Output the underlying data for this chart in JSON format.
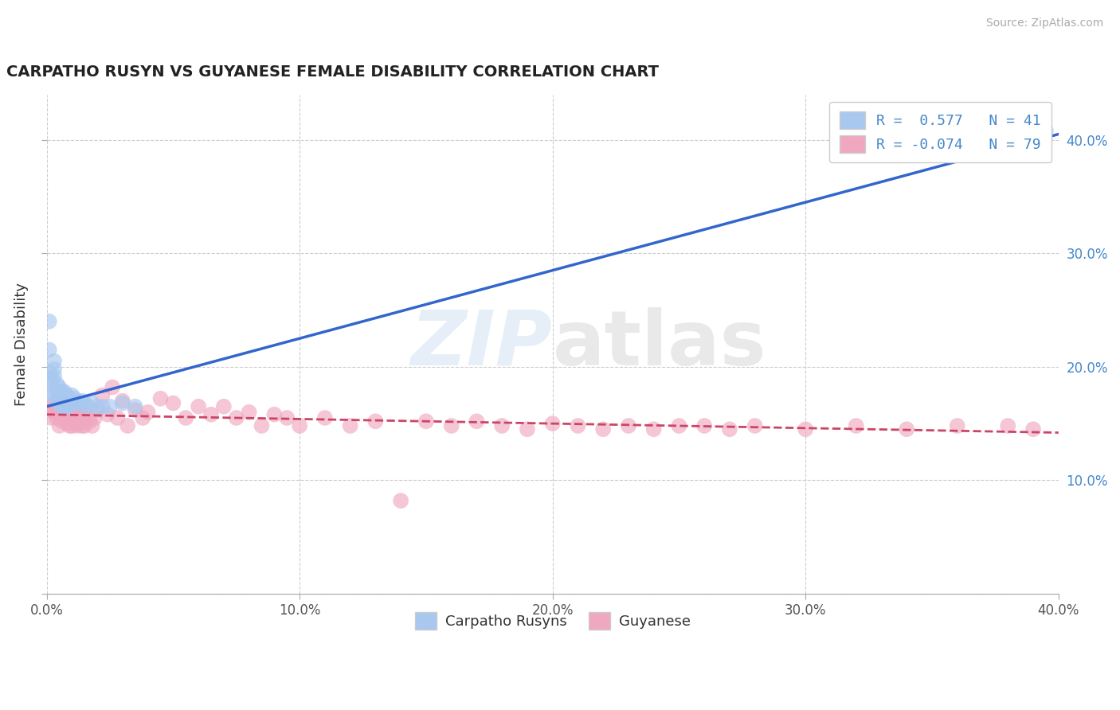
{
  "title": "CARPATHO RUSYN VS GUYANESE FEMALE DISABILITY CORRELATION CHART",
  "source": "Source: ZipAtlas.com",
  "ylabel": "Female Disability",
  "xlim": [
    0.0,
    0.4
  ],
  "ylim": [
    0.0,
    0.44
  ],
  "xtick_vals": [
    0.0,
    0.1,
    0.2,
    0.3,
    0.4
  ],
  "ytick_vals": [
    0.0,
    0.1,
    0.2,
    0.3,
    0.4
  ],
  "grid_color": "#c8c8c8",
  "background_color": "#ffffff",
  "blue_color": "#a8c8f0",
  "pink_color": "#f0a8c0",
  "blue_line_color": "#3366cc",
  "pink_line_color": "#cc4466",
  "legend_R1": "0.577",
  "legend_N1": "41",
  "legend_R2": "-0.074",
  "legend_N2": "79",
  "label1": "Carpatho Rusyns",
  "label2": "Guyanese",
  "blue_line_x0": 0.0,
  "blue_line_y0": 0.165,
  "blue_line_x1": 0.4,
  "blue_line_y1": 0.405,
  "pink_line_x0": 0.0,
  "pink_line_y0": 0.158,
  "pink_line_x1": 0.4,
  "pink_line_y1": 0.142,
  "blue_points_x": [
    0.001,
    0.001,
    0.002,
    0.002,
    0.002,
    0.003,
    0.003,
    0.003,
    0.003,
    0.004,
    0.004,
    0.004,
    0.005,
    0.005,
    0.005,
    0.006,
    0.006,
    0.006,
    0.007,
    0.007,
    0.007,
    0.008,
    0.008,
    0.009,
    0.009,
    0.01,
    0.01,
    0.011,
    0.012,
    0.013,
    0.014,
    0.015,
    0.016,
    0.018,
    0.02,
    0.022,
    0.025,
    0.03,
    0.035,
    0.001,
    0.395
  ],
  "blue_points_y": [
    0.215,
    0.195,
    0.19,
    0.185,
    0.178,
    0.205,
    0.198,
    0.192,
    0.175,
    0.185,
    0.178,
    0.17,
    0.182,
    0.175,
    0.168,
    0.178,
    0.172,
    0.165,
    0.178,
    0.172,
    0.165,
    0.175,
    0.168,
    0.172,
    0.165,
    0.175,
    0.168,
    0.172,
    0.168,
    0.168,
    0.17,
    0.168,
    0.165,
    0.168,
    0.165,
    0.165,
    0.165,
    0.168,
    0.165,
    0.24,
    0.408
  ],
  "pink_points_x": [
    0.001,
    0.002,
    0.002,
    0.003,
    0.003,
    0.004,
    0.004,
    0.005,
    0.005,
    0.006,
    0.006,
    0.007,
    0.007,
    0.008,
    0.008,
    0.009,
    0.009,
    0.01,
    0.01,
    0.011,
    0.011,
    0.012,
    0.012,
    0.013,
    0.013,
    0.014,
    0.014,
    0.015,
    0.015,
    0.016,
    0.017,
    0.018,
    0.019,
    0.02,
    0.022,
    0.024,
    0.026,
    0.028,
    0.03,
    0.032,
    0.035,
    0.038,
    0.04,
    0.045,
    0.05,
    0.055,
    0.06,
    0.065,
    0.07,
    0.075,
    0.08,
    0.085,
    0.09,
    0.095,
    0.1,
    0.11,
    0.12,
    0.13,
    0.14,
    0.15,
    0.16,
    0.17,
    0.18,
    0.19,
    0.2,
    0.21,
    0.22,
    0.23,
    0.24,
    0.25,
    0.26,
    0.27,
    0.28,
    0.3,
    0.32,
    0.34,
    0.36,
    0.38,
    0.39
  ],
  "pink_points_y": [
    0.165,
    0.162,
    0.155,
    0.168,
    0.16,
    0.162,
    0.155,
    0.158,
    0.148,
    0.162,
    0.152,
    0.168,
    0.158,
    0.162,
    0.15,
    0.155,
    0.148,
    0.158,
    0.148,
    0.165,
    0.155,
    0.162,
    0.148,
    0.16,
    0.15,
    0.155,
    0.148,
    0.158,
    0.148,
    0.155,
    0.152,
    0.148,
    0.155,
    0.162,
    0.175,
    0.158,
    0.182,
    0.155,
    0.17,
    0.148,
    0.162,
    0.155,
    0.16,
    0.172,
    0.168,
    0.155,
    0.165,
    0.158,
    0.165,
    0.155,
    0.16,
    0.148,
    0.158,
    0.155,
    0.148,
    0.155,
    0.148,
    0.152,
    0.082,
    0.152,
    0.148,
    0.152,
    0.148,
    0.145,
    0.15,
    0.148,
    0.145,
    0.148,
    0.145,
    0.148,
    0.148,
    0.145,
    0.148,
    0.145,
    0.148,
    0.145,
    0.148,
    0.148,
    0.145
  ]
}
